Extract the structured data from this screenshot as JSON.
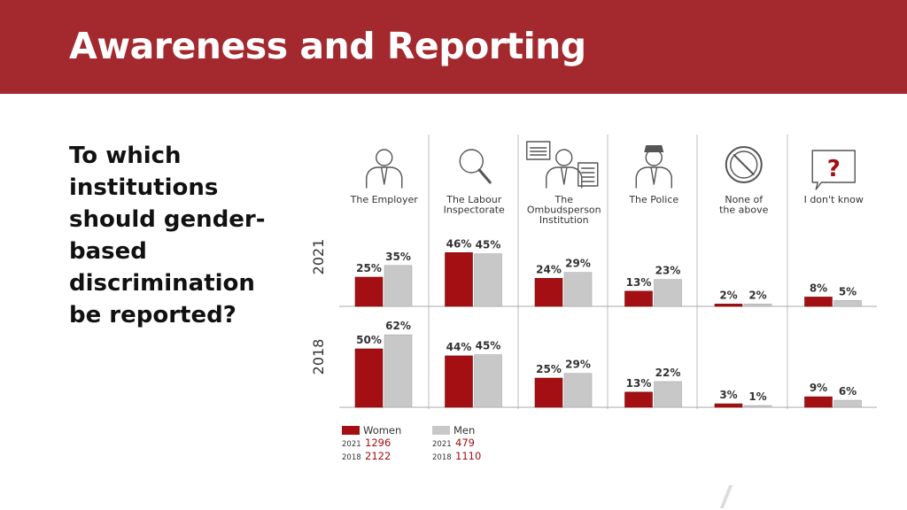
{
  "slide": {
    "title": "Awareness and Reporting",
    "question": "To which institutions should gender-based discrimination be reported?"
  },
  "colors": {
    "title_bar": "#a3292e",
    "women": "#a30f12",
    "men": "#c8c8c8",
    "sample_text": "#a30f12"
  },
  "chart_data": {
    "type": "bar",
    "categories": [
      "The Employer",
      "The Labour Inspectorate",
      "The Ombudsperson Institution",
      "The Police",
      "None of the above",
      "I don't know"
    ],
    "category_label_lines": [
      [
        "The Employer"
      ],
      [
        "The Labour",
        "Inspectorate"
      ],
      [
        "The",
        "Ombudsperson",
        "Institution"
      ],
      [
        "The Police"
      ],
      [
        "None of",
        "the above"
      ],
      [
        "I don't know"
      ]
    ],
    "category_icons": [
      "employer-icon",
      "magnifier-icon",
      "ombudsperson-icon",
      "police-officer-icon",
      "prohibited-icon",
      "question-bubble-icon"
    ],
    "panels": [
      {
        "year": "2021",
        "series": [
          {
            "name": "Women",
            "values": [
              25,
              46,
              24,
              13,
              2,
              8
            ]
          },
          {
            "name": "Men",
            "values": [
              35,
              45,
              29,
              23,
              2,
              5
            ]
          }
        ]
      },
      {
        "year": "2018",
        "series": [
          {
            "name": "Women",
            "values": [
              50,
              44,
              25,
              13,
              3,
              9
            ]
          },
          {
            "name": "Men",
            "values": [
              62,
              45,
              29,
              22,
              1,
              6
            ]
          }
        ]
      }
    ],
    "value_suffix": "%",
    "ylim": [
      0,
      70
    ],
    "legend": {
      "position": "bottom-left",
      "entries": [
        {
          "name": "Women",
          "samples": [
            {
              "year": "2021",
              "n": "1296"
            },
            {
              "year": "2018",
              "n": "2122"
            }
          ]
        },
        {
          "name": "Men",
          "samples": [
            {
              "year": "2021",
              "n": "479"
            },
            {
              "year": "2018",
              "n": "1110"
            }
          ]
        }
      ]
    }
  }
}
